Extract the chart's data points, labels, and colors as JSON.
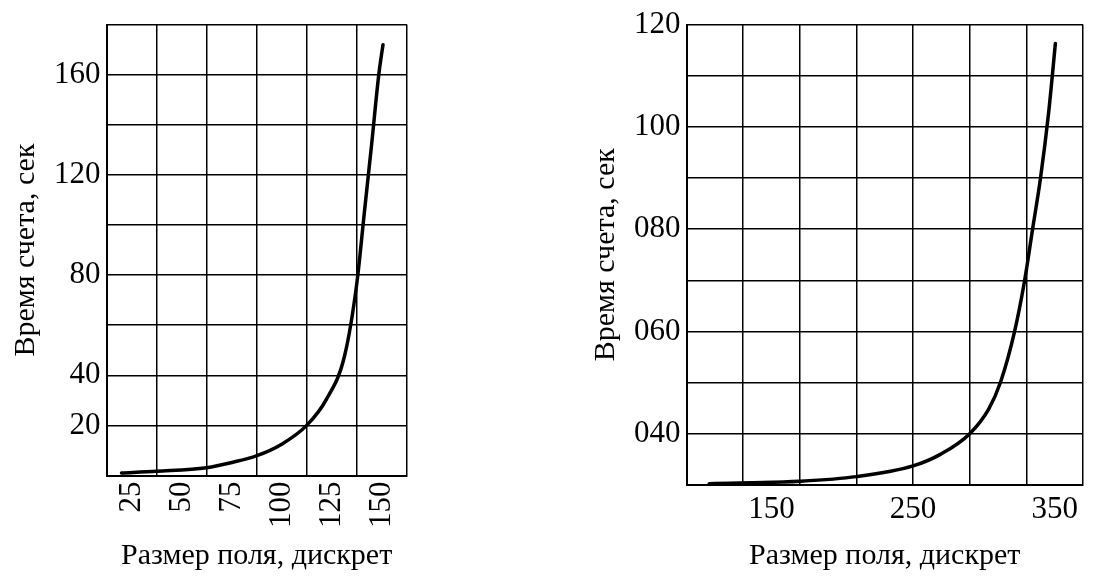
{
  "chart_data": [
    {
      "type": "line",
      "xlabel": "Размер поля, дискрет",
      "ylabel": "Время счета, сек",
      "xlim": [
        12.5,
        162.5
      ],
      "ylim": [
        0,
        180
      ],
      "grid": true,
      "xticks": [
        {
          "value": 12.5,
          "label": null
        },
        25,
        {
          "value": 37.5,
          "label": null
        },
        50,
        {
          "value": 62.5,
          "label": null
        },
        75,
        {
          "value": 87.5,
          "label": null
        },
        100,
        {
          "value": 112.5,
          "label": null
        },
        125,
        {
          "value": 137.5,
          "label": null
        },
        150,
        {
          "value": 162.5,
          "label": null
        }
      ],
      "yticks": [
        {
          "value": 0,
          "label": null
        },
        20,
        40,
        {
          "value": 60,
          "label": null
        },
        80,
        {
          "value": 100,
          "label": null
        },
        120,
        {
          "value": 140,
          "label": null
        },
        160,
        {
          "value": 180,
          "label": null
        }
      ],
      "series": [
        {
          "color": "#000000",
          "x": [
            20,
            37.5,
            62.5,
            75.7,
            87.6,
            100,
            112.5,
            122.4,
            131.4,
            137.5,
            141.3,
            144.9,
            148.5,
            150.6
          ],
          "values": [
            1,
            1.7,
            3.1,
            5.3,
            7.9,
            12.5,
            20,
            30.5,
            47.7,
            76.5,
            105,
            132,
            160,
            172
          ]
        }
      ]
    },
    {
      "type": "line",
      "xlabel": "Размер поля, дискрет",
      "ylabel": "Время счета, сек",
      "xlim": [
        90,
        370
      ],
      "ylim": [
        30,
        120
      ],
      "grid": true,
      "xticks": [
        {
          "value": 90,
          "label": null
        },
        {
          "value": 130,
          "label": null
        },
        150,
        {
          "value": 170,
          "label": null
        },
        {
          "value": 210,
          "label": null
        },
        250,
        {
          "value": 290,
          "label": null
        },
        {
          "value": 330,
          "label": null
        },
        350,
        {
          "value": 370,
          "label": null
        }
      ],
      "yticks": [
        {
          "value": 30,
          "label": null
        },
        {
          "value": 40,
          "label": "040"
        },
        {
          "value": 50,
          "label": null
        },
        {
          "value": 60,
          "label": "060"
        },
        {
          "value": 70,
          "label": null
        },
        {
          "value": 80,
          "label": "080"
        },
        {
          "value": 90,
          "label": null
        },
        100,
        {
          "value": 110,
          "label": null
        },
        120
      ],
      "series": [
        {
          "color": "#000000",
          "x": [
            106,
            170,
            210,
            250,
            269.6,
            290,
            303.4,
            311.8,
            321.7,
            328.8,
            334.4,
            340,
            345.7,
            350.5
          ],
          "values": [
            30.2,
            30.7,
            31.6,
            33.7,
            36,
            40,
            44.8,
            50.1,
            60,
            70,
            80,
            90,
            102.7,
            116.3
          ]
        }
      ]
    }
  ]
}
